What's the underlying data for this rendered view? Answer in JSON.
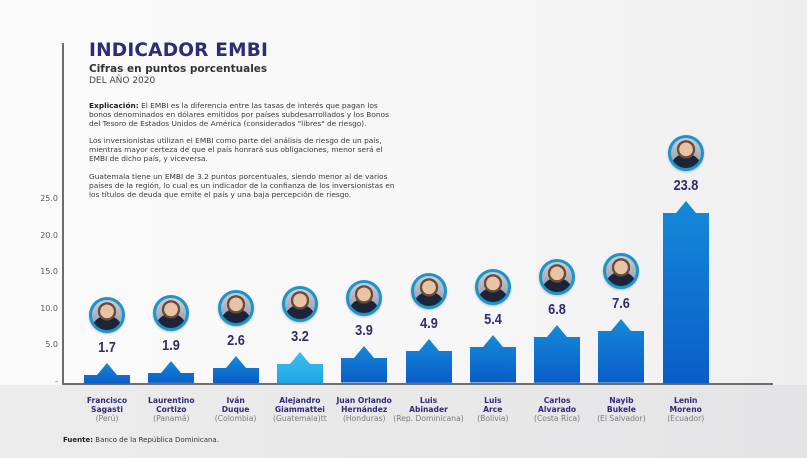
{
  "header": {
    "title": "INDICADOR EMBI",
    "subtitle": "Cifras en puntos porcentuales",
    "period": "DEL AÑO 2020"
  },
  "explanation": {
    "p1_label": "Explicación:",
    "p1_text": " El EMBI es la diferencia entre las tasas de interés que pagan los bonos denominados en dólares emitidos por países subdesarrollados y los Bonos del Tesoro de Estados Unidos de América (considerados \"libres\" de riesgo).",
    "p2_text": "Los inversionistas utilizan el EMBI como parte del análisis de riesgo de un país, mientras mayor certeza de que el país honrará sus obligaciones, menor será el EMBI de dicho país, y viceversa.",
    "p3_text": "Guatemala tiene un EMBI de 3.2 puntos porcentuales, siendo menor al de varios países de la región, lo cual es un indicador de la confianza de los inversionistas en los títulos de deuda que emite el país y una baja percepción de riesgo."
  },
  "source": {
    "label": "Fuente:",
    "text": " Banco de la República Dominicana."
  },
  "colors": {
    "title": "#2e2b7a",
    "bar_top": "#1589d8",
    "bar_bottom": "#0a5dc8",
    "highlight_top": "#3cc0f0",
    "highlight_bottom": "#1ea6e4",
    "avatar_ring": "#1c93c9"
  },
  "chart_data": {
    "type": "bar",
    "title": "INDICADOR EMBI",
    "subtitle": "Cifras en puntos porcentuales — DEL AÑO 2020",
    "xlabel": "",
    "ylabel": "",
    "ylim": [
      0,
      25
    ],
    "yticks": [
      "-",
      "5.0",
      "10.0",
      "15.0",
      "20.0",
      "25.0"
    ],
    "grid": false,
    "highlight": "Alejandro Giammattei",
    "categories": [
      {
        "name": "Francisco Sagasti",
        "line1": "Francisco",
        "line2": "Sagasti",
        "country": "(Perú)"
      },
      {
        "name": "Laurentino Cortizo",
        "line1": "Laurentino",
        "line2": "Cortizo",
        "country": "(Panamá)"
      },
      {
        "name": "Iván Duque",
        "line1": "Iván",
        "line2": "Duque",
        "country": "(Colombia)"
      },
      {
        "name": "Alejandro Giammattei",
        "line1": "Alejandro",
        "line2": "Giammattei",
        "country": "(Guatemala)tt"
      },
      {
        "name": "Juan Orlando Hernández",
        "line1": "Juan Orlando",
        "line2": "Hernández",
        "country": "(Honduras)"
      },
      {
        "name": "Luis Abinader",
        "line1": "Luis",
        "line2": "Abinader",
        "country": "(Rep. Dominicana)"
      },
      {
        "name": "Luis Arce",
        "line1": "Luis",
        "line2": "Arce",
        "country": "(Bolivia)"
      },
      {
        "name": "Carlos Alvarado",
        "line1": "Carlos",
        "line2": "Alvarado",
        "country": "(Costa Rica)"
      },
      {
        "name": "Nayib Bukele",
        "line1": "Nayib",
        "line2": "Bukele",
        "country": "(El Salvador)"
      },
      {
        "name": "Lenin Moreno",
        "line1": "Lenin",
        "line2": "Moreno",
        "country": "(Ecuador)"
      }
    ],
    "values": [
      1.7,
      1.9,
      2.6,
      3.2,
      3.9,
      4.9,
      5.4,
      6.8,
      7.6,
      23.8
    ],
    "value_labels": [
      "1.7",
      "1.9",
      "2.6",
      "3.2",
      "3.9",
      "4.9",
      "5.4",
      "6.8",
      "7.6",
      "23.8"
    ]
  }
}
